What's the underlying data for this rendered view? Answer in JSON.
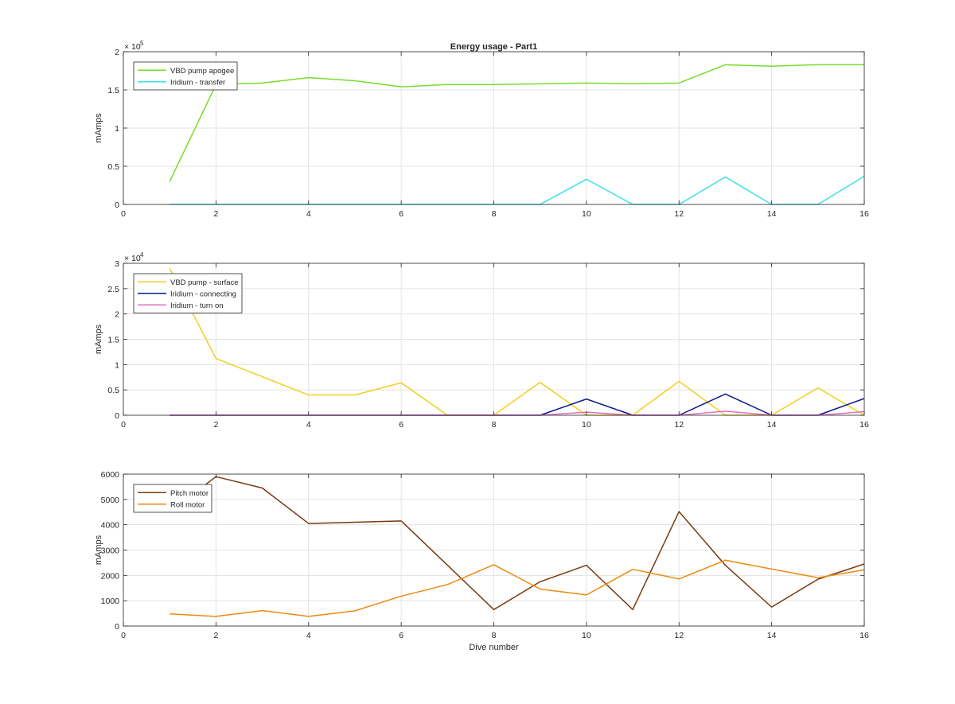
{
  "figure": {
    "background": "#ffffff",
    "axes_color": "#262626",
    "grid_color": "#e3e3e3"
  },
  "chart_data": [
    {
      "type": "line",
      "title": "Energy usage - Part1",
      "xlabel": "",
      "ylabel": "mAmps",
      "exponent_label": "× 10",
      "exponent": "5",
      "xlim": [
        0,
        16
      ],
      "ylim": [
        0,
        200000
      ],
      "xticks": [
        0,
        2,
        4,
        6,
        8,
        10,
        12,
        14,
        16
      ],
      "yticks": [
        0,
        50000,
        100000,
        150000,
        200000
      ],
      "ytick_labels": [
        "0",
        "0.5",
        "1",
        "1.5",
        "2"
      ],
      "grid": true,
      "legend": "top-left",
      "x": [
        1,
        2,
        3,
        4,
        5,
        6,
        7,
        8,
        9,
        10,
        11,
        12,
        13,
        14,
        15,
        16
      ],
      "series": [
        {
          "name": "VBD pump apogee",
          "color": "#77dd2a",
          "values": [
            30000,
            157000,
            159000,
            166000,
            162000,
            154000,
            157000,
            157000,
            158000,
            159000,
            158000,
            159000,
            183000,
            181000,
            183000,
            183000
          ]
        },
        {
          "name": "Iridium - transfer",
          "color": "#3ee0e8",
          "values": [
            0,
            0,
            0,
            0,
            0,
            0,
            0,
            0,
            0,
            33000,
            0,
            0,
            36000,
            0,
            0,
            37000
          ]
        }
      ]
    },
    {
      "type": "line",
      "title": "",
      "xlabel": "",
      "ylabel": "mAmps",
      "exponent_label": "× 10",
      "exponent": "4",
      "xlim": [
        0,
        16
      ],
      "ylim": [
        0,
        30000
      ],
      "xticks": [
        0,
        2,
        4,
        6,
        8,
        10,
        12,
        14,
        16
      ],
      "yticks": [
        0,
        5000,
        10000,
        15000,
        20000,
        25000,
        30000
      ],
      "ytick_labels": [
        "0",
        "0.5",
        "1",
        "1.5",
        "2",
        "2.5",
        "3"
      ],
      "grid": true,
      "legend": "top-left",
      "x": [
        1,
        2,
        3,
        4,
        5,
        6,
        7,
        8,
        9,
        10,
        11,
        12,
        13,
        14,
        15,
        16
      ],
      "series": [
        {
          "name": "VBD pump - surface",
          "color": "#f2cf1e",
          "values": [
            29000,
            11200,
            7600,
            4000,
            4000,
            6400,
            0,
            0,
            6500,
            0,
            0,
            6700,
            0,
            0,
            5400,
            0
          ]
        },
        {
          "name": "Iridium - connecting",
          "color": "#0a1a8c",
          "values": [
            0,
            0,
            0,
            0,
            0,
            0,
            0,
            0,
            0,
            3200,
            0,
            0,
            4200,
            0,
            0,
            3300
          ]
        },
        {
          "name": "Iridium - turn on",
          "color": "#e070c0",
          "values": [
            0,
            0,
            0,
            0,
            0,
            0,
            0,
            0,
            0,
            600,
            0,
            0,
            800,
            0,
            0,
            700
          ]
        }
      ]
    },
    {
      "type": "line",
      "title": "",
      "xlabel": "Dive number",
      "ylabel": "mAmps",
      "exponent_label": "",
      "exponent": "",
      "xlim": [
        0,
        16
      ],
      "ylim": [
        0,
        6000
      ],
      "xticks": [
        0,
        2,
        4,
        6,
        8,
        10,
        12,
        14,
        16
      ],
      "yticks": [
        0,
        1000,
        2000,
        3000,
        4000,
        5000,
        6000
      ],
      "ytick_labels": [
        "0",
        "1000",
        "2000",
        "3000",
        "4000",
        "5000",
        "6000"
      ],
      "grid": true,
      "legend": "top-left",
      "x": [
        1,
        2,
        3,
        4,
        5,
        6,
        7,
        8,
        9,
        10,
        11,
        12,
        13,
        14,
        15,
        16
      ],
      "series": [
        {
          "name": "Pitch motor",
          "color": "#7a3a10",
          "values": [
            4500,
            5900,
            5450,
            4050,
            4100,
            4150,
            2400,
            650,
            1750,
            2400,
            650,
            4520,
            2400,
            750,
            1850,
            2450
          ]
        },
        {
          "name": "Roll motor",
          "color": "#ee8a10",
          "values": [
            480,
            380,
            610,
            380,
            600,
            1180,
            1640,
            2420,
            1460,
            1230,
            2240,
            1860,
            2600,
            2250,
            1910,
            2220
          ]
        }
      ]
    }
  ]
}
